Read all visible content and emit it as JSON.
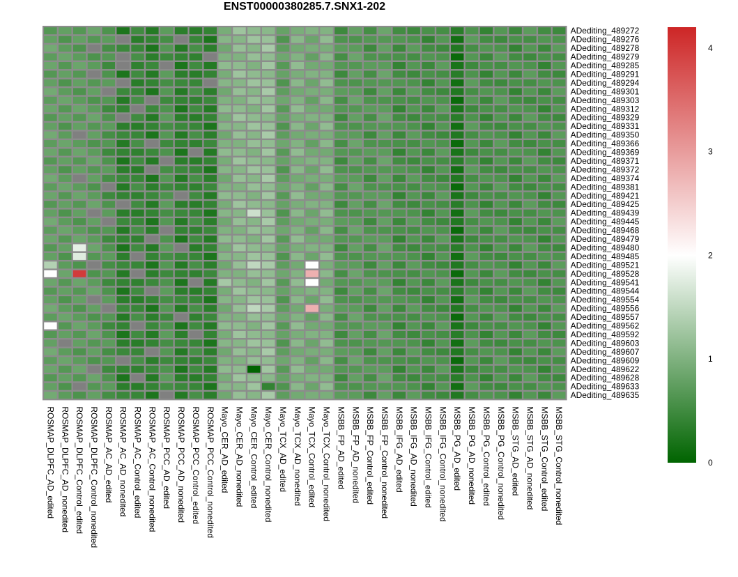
{
  "chart_data": {
    "type": "heatmap",
    "title": "ENST00000380285.7.SNX1-202",
    "columns": [
      "ROSMAP_DLPFC_AD_edited",
      "ROSMAP_DLPFC_AD_nonedited",
      "ROSMAP_DLPFC_Control_edited",
      "ROSMAP_DLPFC_Control_nonedited",
      "ROSMAP_AC_AD_edited",
      "ROSMAP_AC_AD_nonedited",
      "ROSMAP_AC_Control_edited",
      "ROSMAP_AC_Control_nonedited",
      "ROSMAP_PCC_AD_edited",
      "ROSMAP_PCC_AD_nonedited",
      "ROSMAP_PCC_Control_edited",
      "ROSMAP_PCC_Control_nonedited",
      "Mayo_CER_AD_edited",
      "Mayo_CER_AD_nonedited",
      "Mayo_CER_Control_edited",
      "Mayo_CER_Control_nonedited",
      "Mayo_TCX_AD_edited",
      "Mayo_TCX_AD_nonedited",
      "Mayo_TCX_Control_edited",
      "Mayo_TCX_Control_nonedited",
      "MSBB_FP_AD_edited",
      "MSBB_FP_AD_nonedited",
      "MSBB_FP_Control_edited",
      "MSBB_FP_Control_nonedited",
      "MSBB_IFG_AD_edited",
      "MSBB_IFG_AD_nonedited",
      "MSBB_IFG_Control_edited",
      "MSBB_IFG_Control_nonedited",
      "MSBB_PG_AD_edited",
      "MSBB_PG_AD_nonedited",
      "MSBB_PG_Control_edited",
      "MSBB_PG_Control_nonedited",
      "MSBB_STG_AD_edited",
      "MSBB_STG_AD_nonedited",
      "MSBB_STG_Control_edited",
      "MSBB_STG_Control_nonedited"
    ],
    "rows": [
      "ADediting_489272",
      "ADediting_489276",
      "ADediting_489278",
      "ADediting_489279",
      "ADediting_489285",
      "ADediting_489291",
      "ADediting_489294",
      "ADediting_489301",
      "ADediting_489303",
      "ADediting_489312",
      "ADediting_489329",
      "ADediting_489331",
      "ADediting_489350",
      "ADediting_489366",
      "ADediting_489369",
      "ADediting_489371",
      "ADediting_489372",
      "ADediting_489374",
      "ADediting_489381",
      "ADediting_489421",
      "ADediting_489425",
      "ADediting_489439",
      "ADediting_489445",
      "ADediting_489468",
      "ADediting_489479",
      "ADediting_489480",
      "ADediting_489485",
      "ADediting_489521",
      "ADediting_489528",
      "ADediting_489541",
      "ADediting_489544",
      "ADediting_489554",
      "ADediting_489556",
      "ADediting_489557",
      "ADediting_489562",
      "ADediting_489592",
      "ADediting_489603",
      "ADediting_489607",
      "ADediting_489609",
      "ADediting_489622",
      "ADediting_489628",
      "ADediting_489633",
      "ADediting_489635"
    ],
    "colorscale": {
      "min": 0,
      "max": 4.2,
      "low_color": "#006400",
      "mid_value": 2,
      "mid_color": "#ffffff",
      "high_color": "#cd2626",
      "na_color": "#808080",
      "ticks": [
        0,
        1,
        2,
        3,
        4
      ]
    },
    "column_levels": {
      "c0": 0.78,
      "c1": 0.72,
      "c2": 0.72,
      "c3": 0.72,
      "c4": 0.6,
      "c5": 0.34,
      "c6": 0.44,
      "c7": 0.34,
      "c8": 0.6,
      "c9": 0.34,
      "c10": 0.44,
      "c11": 0.34,
      "c12": 1.0,
      "c13": 1.12,
      "c14": 1.12,
      "c15": 1.2,
      "c16": 0.74,
      "c17": 1.02,
      "c18": 0.9,
      "c19": 1.02,
      "c20": 0.6,
      "c21": 0.72,
      "c22": 0.6,
      "c23": 0.72,
      "c24": 0.52,
      "c25": 0.6,
      "c26": 0.52,
      "c27": 0.6,
      "c28": 0.2,
      "c29": 0.6,
      "c30": 0.52,
      "c31": 0.6,
      "c32": 0.52,
      "c33": 0.6,
      "c34": 0.52,
      "c35": 0.6
    },
    "missing_cells": [
      [
        1,
        5
      ],
      [
        1,
        9
      ],
      [
        2,
        3
      ],
      [
        3,
        5
      ],
      [
        3,
        11
      ],
      [
        4,
        5
      ],
      [
        4,
        8
      ],
      [
        5,
        3
      ],
      [
        6,
        5
      ],
      [
        6,
        11
      ],
      [
        7,
        4
      ],
      [
        8,
        7
      ],
      [
        9,
        6
      ],
      [
        10,
        5
      ],
      [
        12,
        2
      ],
      [
        13,
        7
      ],
      [
        14,
        10
      ],
      [
        15,
        8
      ],
      [
        16,
        7
      ],
      [
        17,
        2
      ],
      [
        18,
        4
      ],
      [
        19,
        9
      ],
      [
        20,
        5
      ],
      [
        21,
        3
      ],
      [
        22,
        4
      ],
      [
        23,
        8
      ],
      [
        24,
        7
      ],
      [
        25,
        9
      ],
      [
        26,
        6
      ],
      [
        27,
        3
      ],
      [
        28,
        6
      ],
      [
        29,
        10
      ],
      [
        30,
        7
      ],
      [
        31,
        3
      ],
      [
        32,
        4
      ],
      [
        33,
        9
      ],
      [
        34,
        6
      ],
      [
        35,
        10
      ],
      [
        36,
        1
      ],
      [
        37,
        7
      ],
      [
        38,
        5
      ],
      [
        39,
        3
      ],
      [
        40,
        6
      ],
      [
        41,
        2
      ],
      [
        42,
        8
      ]
    ],
    "special_cells": [
      {
        "row": "ADediting_489480",
        "column": "ROSMAP_DLPFC_Control_edited",
        "value": 1.8
      },
      {
        "row": "ADediting_489485",
        "column": "ROSMAP_DLPFC_Control_edited",
        "value": 1.75
      },
      {
        "row": "ADediting_489521",
        "column": "ROSMAP_DLPFC_AD_edited",
        "value": 1.4
      },
      {
        "row": "ADediting_489521",
        "column": "Mayo_CER_Control_edited",
        "value": 1.5
      },
      {
        "row": "ADediting_489521",
        "column": "Mayo_TCX_Control_edited",
        "value": 2.0
      },
      {
        "row": "ADediting_489528",
        "column": "ROSMAP_DLPFC_AD_edited",
        "value": 2.0
      },
      {
        "row": "ADediting_489528",
        "column": "ROSMAP_DLPFC_Control_edited",
        "value": 4.0
      },
      {
        "row": "ADediting_489528",
        "column": "Mayo_TCX_Control_edited",
        "value": 2.8
      },
      {
        "row": "ADediting_489541",
        "column": "Mayo_CER_AD_edited",
        "value": 1.3
      },
      {
        "row": "ADediting_489541",
        "column": "Mayo_TCX_Control_edited",
        "value": 2.0
      },
      {
        "row": "ADediting_489556",
        "column": "Mayo_CER_Control_edited",
        "value": 1.5
      },
      {
        "row": "ADediting_489556",
        "column": "Mayo_TCX_Control_edited",
        "value": 2.8
      },
      {
        "row": "ADediting_489439",
        "column": "Mayo_CER_Control_edited",
        "value": 1.6
      },
      {
        "row": "ADediting_489562",
        "column": "ROSMAP_DLPFC_AD_edited",
        "value": 2.0
      },
      {
        "row": "ADediting_489622",
        "column": "Mayo_CER_Control_edited",
        "value": 0.0
      },
      {
        "row": "ADediting_489633",
        "column": "Mayo_CER_Control_nonedited",
        "value": 0.4
      }
    ]
  }
}
